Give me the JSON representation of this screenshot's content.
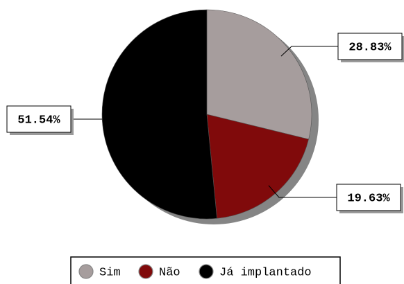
{
  "chart_data": {
    "type": "pie",
    "categories": [
      "Sim",
      "Não",
      "Já implantado"
    ],
    "values": [
      28.83,
      19.63,
      51.54
    ],
    "value_labels": [
      "28.83%",
      "19.63%",
      "51.54%"
    ],
    "colors": [
      "#a69d9d",
      "#800a0b",
      "#000000"
    ],
    "legend": "bottom"
  }
}
